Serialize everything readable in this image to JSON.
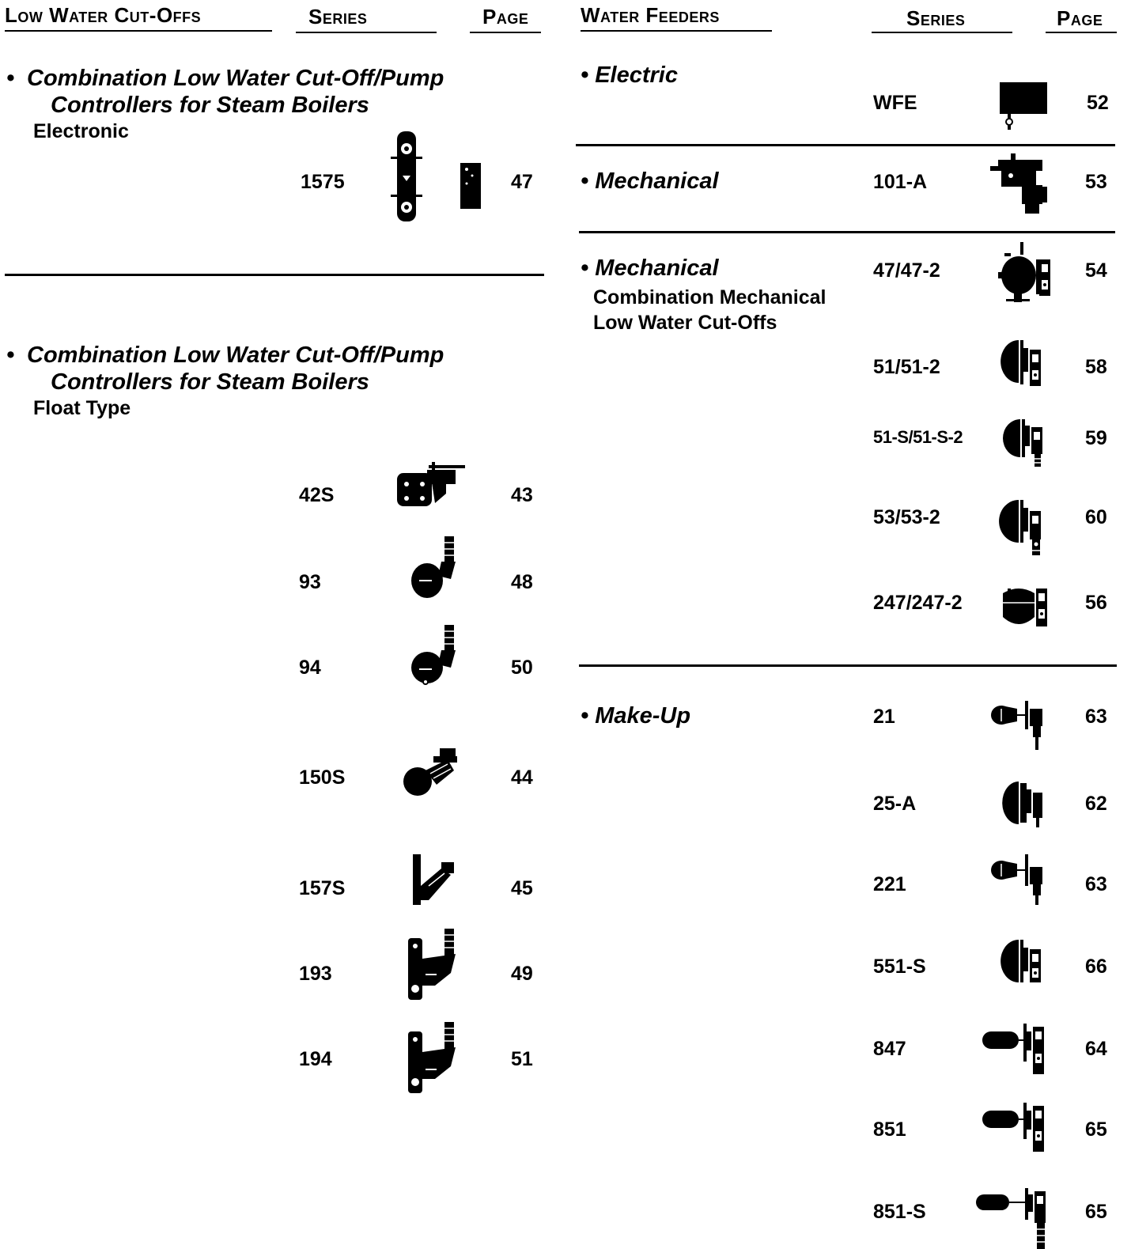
{
  "left": {
    "header": {
      "title": "Low Water Cut-Offs",
      "series": "Series",
      "page": "Page"
    },
    "section1": {
      "bullet": "•",
      "title_line1": "Combination Low Water Cut-Off/Pump",
      "title_line2": "Controllers for Steam Boilers",
      "subtitle": "Electronic",
      "items": [
        {
          "series": "1575",
          "page": "47",
          "icon": "electronic-controller-icon"
        }
      ]
    },
    "section2": {
      "bullet": "•",
      "title_line1": "Combination Low Water Cut-Off/Pump",
      "title_line2": "Controllers for Steam Boilers",
      "subtitle": "Float Type",
      "items": [
        {
          "series": "42S",
          "page": "43",
          "icon": "float-control-42s-icon"
        },
        {
          "series": "93",
          "page": "48",
          "icon": "float-control-93-icon"
        },
        {
          "series": "94",
          "page": "50",
          "icon": "float-control-94-icon"
        },
        {
          "series": "150S",
          "page": "44",
          "icon": "float-control-150s-icon"
        },
        {
          "series": "157S",
          "page": "45",
          "icon": "float-control-157s-icon"
        },
        {
          "series": "193",
          "page": "49",
          "icon": "float-control-193-icon"
        },
        {
          "series": "194",
          "page": "51",
          "icon": "float-control-194-icon"
        }
      ]
    }
  },
  "right": {
    "header": {
      "title": "Water Feeders",
      "series": "Series",
      "page": "Page"
    },
    "electric": {
      "title": "• Electric",
      "items": [
        {
          "series": "WFE",
          "page": "52",
          "icon": "electric-feeder-icon"
        }
      ]
    },
    "mechanical": {
      "title": "• Mechanical",
      "items": [
        {
          "series": "101-A",
          "page": "53",
          "icon": "mechanical-feeder-icon"
        }
      ]
    },
    "combination": {
      "title": "• Mechanical",
      "sub1": "Combination Mechanical",
      "sub2": "Low Water Cut-Offs",
      "items": [
        {
          "series": "47/47-2",
          "page": "54",
          "icon": "combo-feeder-47-icon"
        },
        {
          "series": "51/51-2",
          "page": "58",
          "icon": "combo-feeder-51-icon"
        },
        {
          "series": "51-S/51-S-2",
          "page": "59",
          "icon": "combo-feeder-51s-icon"
        },
        {
          "series": "53/53-2",
          "page": "60",
          "icon": "combo-feeder-53-icon"
        },
        {
          "series": "247/247-2",
          "page": "56",
          "icon": "combo-feeder-247-icon"
        }
      ]
    },
    "makeup": {
      "title": "• Make-Up",
      "items": [
        {
          "series": "21",
          "page": "63",
          "icon": "makeup-feeder-21-icon"
        },
        {
          "series": "25-A",
          "page": "62",
          "icon": "makeup-feeder-25a-icon"
        },
        {
          "series": "221",
          "page": "63",
          "icon": "makeup-feeder-221-icon"
        },
        {
          "series": "551-S",
          "page": "66",
          "icon": "makeup-feeder-551s-icon"
        },
        {
          "series": "847",
          "page": "64",
          "icon": "makeup-feeder-847-icon"
        },
        {
          "series": "851",
          "page": "65",
          "icon": "makeup-feeder-851-icon"
        },
        {
          "series": "851-S",
          "page": "65",
          "icon": "makeup-feeder-851s-icon"
        }
      ]
    }
  }
}
